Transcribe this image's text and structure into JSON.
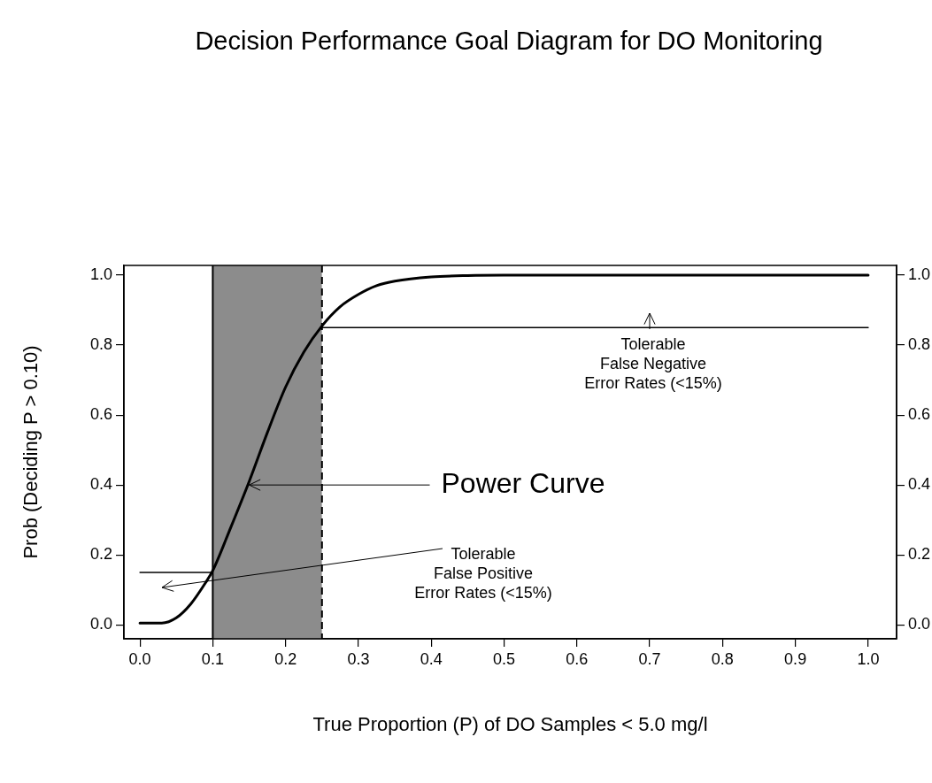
{
  "chart_data": {
    "type": "line",
    "title": "Decision Performance Goal Diagram for DO Monitoring",
    "xlabel": "True Proportion (P) of DO Samples < 5.0 mg/l",
    "ylabel": "Prob (Deciding P > 0.10)",
    "xlim": [
      -0.022,
      1.039
    ],
    "ylim": [
      -0.04,
      1.028
    ],
    "y2lim": [
      -0.04,
      1.028
    ],
    "xticks": [
      {
        "value": 0,
        "label": "0.0"
      },
      {
        "value": 0.1,
        "label": "0.1"
      },
      {
        "value": 0.2,
        "label": "0.2"
      },
      {
        "value": 0.3,
        "label": "0.3"
      },
      {
        "value": 0.4,
        "label": "0.4"
      },
      {
        "value": 0.5,
        "label": "0.5"
      },
      {
        "value": 0.6,
        "label": "0.6"
      },
      {
        "value": 0.7,
        "label": "0.7"
      },
      {
        "value": 0.8,
        "label": "0.8"
      },
      {
        "value": 0.9,
        "label": "0.9"
      },
      {
        "value": 1,
        "label": "1.0"
      }
    ],
    "yticks": [
      {
        "value": 0,
        "label": "0.0"
      },
      {
        "value": 0.2,
        "label": "0.2"
      },
      {
        "value": 0.4,
        "label": "0.4"
      },
      {
        "value": 0.6,
        "label": "0.6"
      },
      {
        "value": 0.8,
        "label": "0.8"
      },
      {
        "value": 1,
        "label": "1.0"
      }
    ],
    "y2ticks": [
      {
        "value": 0,
        "label": "0.0"
      },
      {
        "value": 0.2,
        "label": "0.2"
      },
      {
        "value": 0.4,
        "label": "0.4"
      },
      {
        "value": 0.6,
        "label": "0.6"
      },
      {
        "value": 0.8,
        "label": "0.8"
      },
      {
        "value": 1,
        "label": "1.0"
      }
    ],
    "series": [
      {
        "color": "#000000",
        "x": [
          0,
          0.03,
          0.05,
          0.07,
          0.09,
          0.1,
          0.125,
          0.15,
          0.175,
          0.2,
          0.225,
          0.25,
          0.275,
          0.3,
          0.325,
          0.35,
          0.4,
          0.45,
          0.5,
          1.0
        ],
        "values": [
          0.005,
          0.005,
          0.02,
          0.06,
          0.12,
          0.155,
          0.28,
          0.41,
          0.55,
          0.68,
          0.78,
          0.855,
          0.91,
          0.945,
          0.97,
          0.983,
          0.995,
          0.999,
          1.0,
          1.0
        ]
      },
      {
        "color": "#000000",
        "x": [
          0,
          0.1
        ],
        "values": [
          0.15,
          0.15
        ]
      },
      {
        "color": "#000000",
        "x": [
          0.25,
          1.0
        ],
        "values": [
          0.85,
          0.85
        ]
      }
    ],
    "bands": [
      {
        "axis": "x",
        "from": 0.1,
        "to": 0.25,
        "color": "#8c8c8c"
      }
    ],
    "ref_lines": [
      {
        "axis": "x",
        "value": 0.1,
        "color": "#000000",
        "line_style": "solid"
      },
      {
        "axis": "x",
        "value": 0.25,
        "color": "#000000",
        "line_style": "dashed"
      }
    ],
    "annotations": [
      {
        "text": "Power Curve",
        "x": 0.15,
        "y": 0.4
      },
      "Tolerable\nFalse Negative\nError Rates (<15%)",
      "Tolerable\nFalse Positive\nError Rates (<15%)"
    ],
    "grid": false,
    "legend": false,
    "marker": "none",
    "line_style": "solid"
  }
}
